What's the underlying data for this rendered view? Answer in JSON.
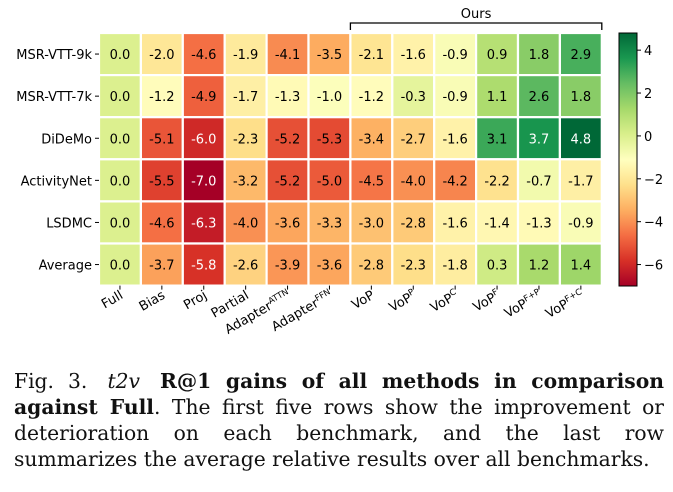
{
  "chart_data": {
    "type": "heatmap",
    "rows": [
      "MSR-VTT-9k",
      "MSR-VTT-7k",
      "DiDeMo",
      "ActivityNet",
      "LSDMC",
      "Average"
    ],
    "columns": [
      {
        "base": "Full",
        "sup": ""
      },
      {
        "base": "Bias",
        "sup": ""
      },
      {
        "base": "Proj",
        "sup": ""
      },
      {
        "base": "Partial",
        "sup": ""
      },
      {
        "base": "Adapter",
        "sup": "ATTN"
      },
      {
        "base": "Adapter",
        "sup": "FFN"
      },
      {
        "base": "VoP",
        "sup": ""
      },
      {
        "base": "VoP",
        "sup": "P"
      },
      {
        "base": "VoP",
        "sup": "C"
      },
      {
        "base": "VoP",
        "sup": "F"
      },
      {
        "base": "VoP",
        "sup": "F+P"
      },
      {
        "base": "VoP",
        "sup": "F+C"
      }
    ],
    "values": [
      [
        0.0,
        -2.0,
        -4.6,
        -1.9,
        -4.1,
        -3.5,
        -2.1,
        -1.6,
        -0.9,
        0.9,
        1.8,
        2.9
      ],
      [
        0.0,
        -1.2,
        -4.9,
        -1.7,
        -1.3,
        -1.0,
        -1.2,
        -0.3,
        -0.9,
        1.1,
        2.6,
        1.8
      ],
      [
        0.0,
        -5.1,
        -6.0,
        -2.3,
        -5.2,
        -5.3,
        -3.4,
        -2.7,
        -1.6,
        3.1,
        3.7,
        4.8
      ],
      [
        0.0,
        -5.5,
        -7.0,
        -3.2,
        -5.2,
        -5.0,
        -4.5,
        -4.0,
        -4.2,
        -2.2,
        -0.7,
        -1.7
      ],
      [
        0.0,
        -4.6,
        -6.3,
        -4.0,
        -3.6,
        -3.3,
        -3.0,
        -2.8,
        -1.6,
        -1.4,
        -1.3,
        -0.9
      ],
      [
        0.0,
        -3.7,
        -5.8,
        -2.6,
        -3.9,
        -3.6,
        -2.8,
        -2.3,
        -1.8,
        0.3,
        1.2,
        1.4
      ]
    ],
    "group_label": "Ours",
    "group_columns": [
      6,
      11
    ],
    "colorbar": {
      "colormap": "RdYlGn",
      "vmin": -7.0,
      "vmax": 4.8,
      "ticks": [
        4,
        2,
        0,
        -2,
        -4,
        -6
      ],
      "tick_labels": [
        "4",
        "2",
        "0",
        "−2",
        "−4",
        "−6"
      ]
    }
  },
  "caption": {
    "fig_label": "Fig. 3.",
    "italic_part": "t2v",
    "bold_part": "R@1 gains of all methods in comparison against Full",
    "rest": ". The first five rows show the improvement or deterioration on each benchmark, and the last row summarizes the average relative results over all benchmarks."
  }
}
